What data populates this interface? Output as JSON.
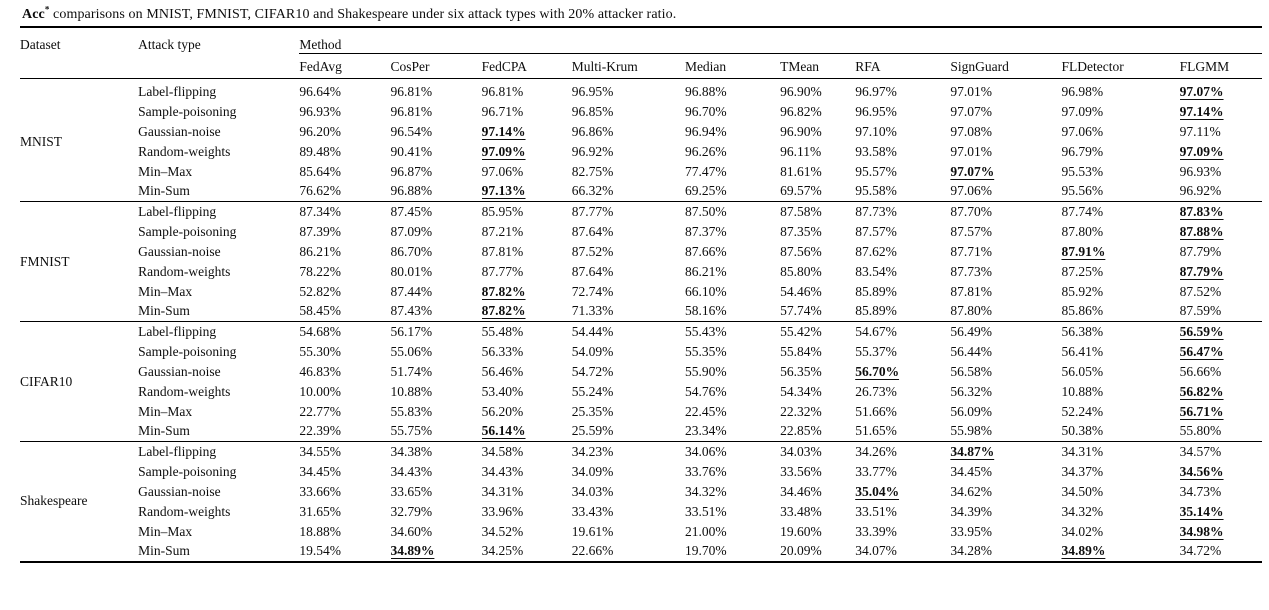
{
  "title": {
    "term": "Acc",
    "term_sup": "*",
    "text": " comparisons on MNIST, FMNIST, CIFAR10 and Shakespeare under six attack types with 20% attacker ratio."
  },
  "table": {
    "headers": {
      "dataset": "Dataset",
      "attack_type": "Attack type",
      "method_group": "Method",
      "methods": [
        "FedAvg",
        "CosPer",
        "FedCPA",
        "Multi-Krum",
        "Median",
        "TMean",
        "RFA",
        "SignGuard",
        "FLDetector",
        "FLGMM"
      ]
    },
    "groups": [
      {
        "dataset": "MNIST",
        "rows": [
          {
            "attack": "Label-flipping",
            "values": [
              "96.64%",
              "96.81%",
              "96.81%",
              "96.95%",
              "96.88%",
              "96.90%",
              "96.97%",
              "97.01%",
              "96.98%",
              "97.07%"
            ],
            "best": [
              9
            ]
          },
          {
            "attack": "Sample-poisoning",
            "values": [
              "96.93%",
              "96.81%",
              "96.71%",
              "96.85%",
              "96.70%",
              "96.82%",
              "96.95%",
              "97.07%",
              "97.09%",
              "97.14%"
            ],
            "best": [
              9
            ]
          },
          {
            "attack": "Gaussian-noise",
            "values": [
              "96.20%",
              "96.54%",
              "97.14%",
              "96.86%",
              "96.94%",
              "96.90%",
              "97.10%",
              "97.08%",
              "97.06%",
              "97.11%"
            ],
            "best": [
              2
            ]
          },
          {
            "attack": "Random-weights",
            "values": [
              "89.48%",
              "90.41%",
              "97.09%",
              "96.92%",
              "96.26%",
              "96.11%",
              "93.58%",
              "97.01%",
              "96.79%",
              "97.09%"
            ],
            "best": [
              2,
              9
            ]
          },
          {
            "attack": "Min–Max",
            "values": [
              "85.64%",
              "96.87%",
              "97.06%",
              "82.75%",
              "77.47%",
              "81.61%",
              "95.57%",
              "97.07%",
              "95.53%",
              "96.93%"
            ],
            "best": [
              7
            ]
          },
          {
            "attack": "Min-Sum",
            "values": [
              "76.62%",
              "96.88%",
              "97.13%",
              "66.32%",
              "69.25%",
              "69.57%",
              "95.58%",
              "97.06%",
              "95.56%",
              "96.92%"
            ],
            "best": [
              2
            ]
          }
        ]
      },
      {
        "dataset": "FMNIST",
        "rows": [
          {
            "attack": "Label-flipping",
            "values": [
              "87.34%",
              "87.45%",
              "85.95%",
              "87.77%",
              "87.50%",
              "87.58%",
              "87.73%",
              "87.70%",
              "87.74%",
              "87.83%"
            ],
            "best": [
              9
            ]
          },
          {
            "attack": "Sample-poisoning",
            "values": [
              "87.39%",
              "87.09%",
              "87.21%",
              "87.64%",
              "87.37%",
              "87.35%",
              "87.57%",
              "87.57%",
              "87.80%",
              "87.88%"
            ],
            "best": [
              9
            ]
          },
          {
            "attack": "Gaussian-noise",
            "values": [
              "86.21%",
              "86.70%",
              "87.81%",
              "87.52%",
              "87.66%",
              "87.56%",
              "87.62%",
              "87.71%",
              "87.91%",
              "87.79%"
            ],
            "best": [
              8
            ]
          },
          {
            "attack": "Random-weights",
            "values": [
              "78.22%",
              "80.01%",
              "87.77%",
              "87.64%",
              "86.21%",
              "85.80%",
              "83.54%",
              "87.73%",
              "87.25%",
              "87.79%"
            ],
            "best": [
              9
            ]
          },
          {
            "attack": "Min–Max",
            "values": [
              "52.82%",
              "87.44%",
              "87.82%",
              "72.74%",
              "66.10%",
              "54.46%",
              "85.89%",
              "87.81%",
              "85.92%",
              "87.52%"
            ],
            "best": [
              2
            ]
          },
          {
            "attack": "Min-Sum",
            "values": [
              "58.45%",
              "87.43%",
              "87.82%",
              "71.33%",
              "58.16%",
              "57.74%",
              "85.89%",
              "87.80%",
              "85.86%",
              "87.59%"
            ],
            "best": [
              2
            ]
          }
        ]
      },
      {
        "dataset": "CIFAR10",
        "rows": [
          {
            "attack": "Label-flipping",
            "values": [
              "54.68%",
              "56.17%",
              "55.48%",
              "54.44%",
              "55.43%",
              "55.42%",
              "54.67%",
              "56.49%",
              "56.38%",
              "56.59%"
            ],
            "best": [
              9
            ]
          },
          {
            "attack": "Sample-poisoning",
            "values": [
              "55.30%",
              "55.06%",
              "56.33%",
              "54.09%",
              "55.35%",
              "55.84%",
              "55.37%",
              "56.44%",
              "56.41%",
              "56.47%"
            ],
            "best": [
              9
            ]
          },
          {
            "attack": "Gaussian-noise",
            "values": [
              "46.83%",
              "51.74%",
              "56.46%",
              "54.72%",
              "55.90%",
              "56.35%",
              "56.70%",
              "56.58%",
              "56.05%",
              "56.66%"
            ],
            "best": [
              6
            ]
          },
          {
            "attack": "Random-weights",
            "values": [
              "10.00%",
              "10.88%",
              "53.40%",
              "55.24%",
              "54.76%",
              "54.34%",
              "26.73%",
              "56.32%",
              "10.88%",
              "56.82%"
            ],
            "best": [
              9
            ]
          },
          {
            "attack": "Min–Max",
            "values": [
              "22.77%",
              "55.83%",
              "56.20%",
              "25.35%",
              "22.45%",
              "22.32%",
              "51.66%",
              "56.09%",
              "52.24%",
              "56.71%"
            ],
            "best": [
              9
            ]
          },
          {
            "attack": "Min-Sum",
            "values": [
              "22.39%",
              "55.75%",
              "56.14%",
              "25.59%",
              "23.34%",
              "22.85%",
              "51.65%",
              "55.98%",
              "50.38%",
              "55.80%"
            ],
            "best": [
              2
            ]
          }
        ]
      },
      {
        "dataset": "Shakespeare",
        "rows": [
          {
            "attack": "Label-flipping",
            "values": [
              "34.55%",
              "34.38%",
              "34.58%",
              "34.23%",
              "34.06%",
              "34.03%",
              "34.26%",
              "34.87%",
              "34.31%",
              "34.57%"
            ],
            "best": [
              7
            ]
          },
          {
            "attack": "Sample-poisoning",
            "values": [
              "34.45%",
              "34.43%",
              "34.43%",
              "34.09%",
              "33.76%",
              "33.56%",
              "33.77%",
              "34.45%",
              "34.37%",
              "34.56%"
            ],
            "best": [
              9
            ]
          },
          {
            "attack": "Gaussian-noise",
            "values": [
              "33.66%",
              "33.65%",
              "34.31%",
              "34.03%",
              "34.32%",
              "34.46%",
              "35.04%",
              "34.62%",
              "34.50%",
              "34.73%"
            ],
            "best": [
              6
            ]
          },
          {
            "attack": "Random-weights",
            "values": [
              "31.65%",
              "32.79%",
              "33.96%",
              "33.43%",
              "33.51%",
              "33.48%",
              "33.51%",
              "34.39%",
              "34.32%",
              "35.14%"
            ],
            "best": [
              9
            ]
          },
          {
            "attack": "Min–Max",
            "values": [
              "18.88%",
              "34.60%",
              "34.52%",
              "19.61%",
              "21.00%",
              "19.60%",
              "33.39%",
              "33.95%",
              "34.02%",
              "34.98%"
            ],
            "best": [
              9
            ]
          },
          {
            "attack": "Min-Sum",
            "values": [
              "19.54%",
              "34.89%",
              "34.25%",
              "22.66%",
              "19.70%",
              "20.09%",
              "34.07%",
              "34.28%",
              "34.89%",
              "34.72%"
            ],
            "best": [
              1,
              8
            ]
          }
        ]
      }
    ]
  }
}
